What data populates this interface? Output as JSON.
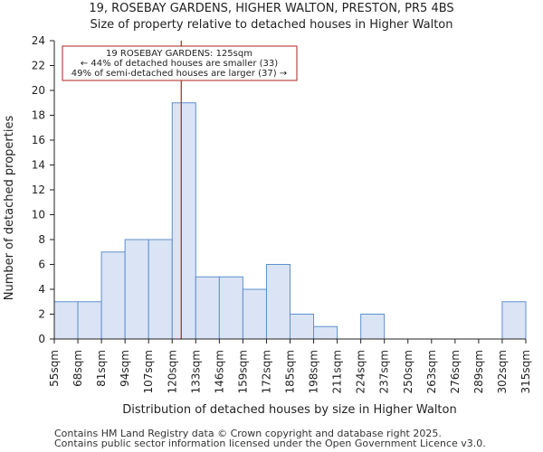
{
  "chart_data": {
    "type": "bar",
    "title": "19, ROSEBAY GARDENS, HIGHER WALTON, PRESTON, PR5 4BS",
    "subtitle": "Size of property relative to detached houses in Higher Walton",
    "xlabel": "Distribution of detached houses by size in Higher Walton",
    "ylabel": "Number of detached properties",
    "bin_edges": [
      55,
      68,
      81,
      94,
      107,
      120,
      133,
      146,
      159,
      172,
      185,
      198,
      211,
      224,
      237,
      250,
      263,
      276,
      289,
      302,
      315
    ],
    "tick_labels": [
      "55sqm",
      "68sqm",
      "81sqm",
      "94sqm",
      "107sqm",
      "120sqm",
      "133sqm",
      "146sqm",
      "159sqm",
      "172sqm",
      "185sqm",
      "198sqm",
      "211sqm",
      "224sqm",
      "237sqm",
      "250sqm",
      "263sqm",
      "276sqm",
      "289sqm",
      "302sqm",
      "315sqm"
    ],
    "values": [
      3,
      3,
      7,
      8,
      8,
      19,
      5,
      5,
      4,
      6,
      2,
      1,
      0,
      2,
      0,
      0,
      0,
      0,
      0,
      3
    ],
    "ylim": [
      0,
      24
    ],
    "yticks": [
      0,
      2,
      4,
      6,
      8,
      10,
      12,
      14,
      16,
      18,
      20,
      22,
      24
    ],
    "marker_value": 125,
    "annotation": {
      "line1": "19 ROSEBAY GARDENS: 125sqm",
      "line2": "← 44% of detached houses are smaller (33)",
      "line3": "49% of semi-detached houses are larger (37) →"
    },
    "colors": {
      "bar_fill": "#dae4f5",
      "bar_edge": "#5f8fcf",
      "marker": "#b22222",
      "axis": "#222222"
    }
  },
  "footer": {
    "line1": "Contains HM Land Registry data © Crown copyright and database right 2025.",
    "line2": "Contains public sector information licensed under the Open Government Licence v3.0."
  }
}
